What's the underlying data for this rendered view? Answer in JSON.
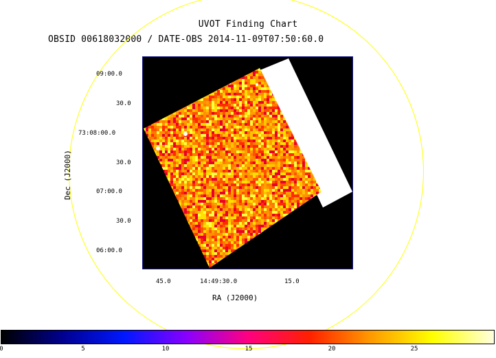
{
  "header": {
    "title": "UVOT Finding Chart",
    "subtitle": "OBSID 00618032000 / DATE-OBS 2014-11-09T07:50:60.0"
  },
  "axes": {
    "ra_label": "RA (J2000)",
    "dec_label": "Dec (J2000)",
    "ra_ticks": [
      "45.0",
      "14:49:30.0",
      "15.0"
    ],
    "dec_ticks": [
      "09:00.0",
      "30.0",
      "73:08:00.0",
      "30.0",
      "07:00.0",
      "30.0",
      "06:00.0"
    ]
  },
  "colorbar": {
    "ticks": [
      "0",
      "5",
      "10",
      "15",
      "20",
      "25"
    ],
    "colors": [
      "#000000",
      "#000090",
      "#0018ff",
      "#8800ff",
      "#ff0080",
      "#ff2000",
      "#ff9a00",
      "#ffff00",
      "#ffffe0"
    ]
  },
  "overlay": {
    "circle_color": "#ffff00",
    "frame_color": "#1a1a8a"
  }
}
